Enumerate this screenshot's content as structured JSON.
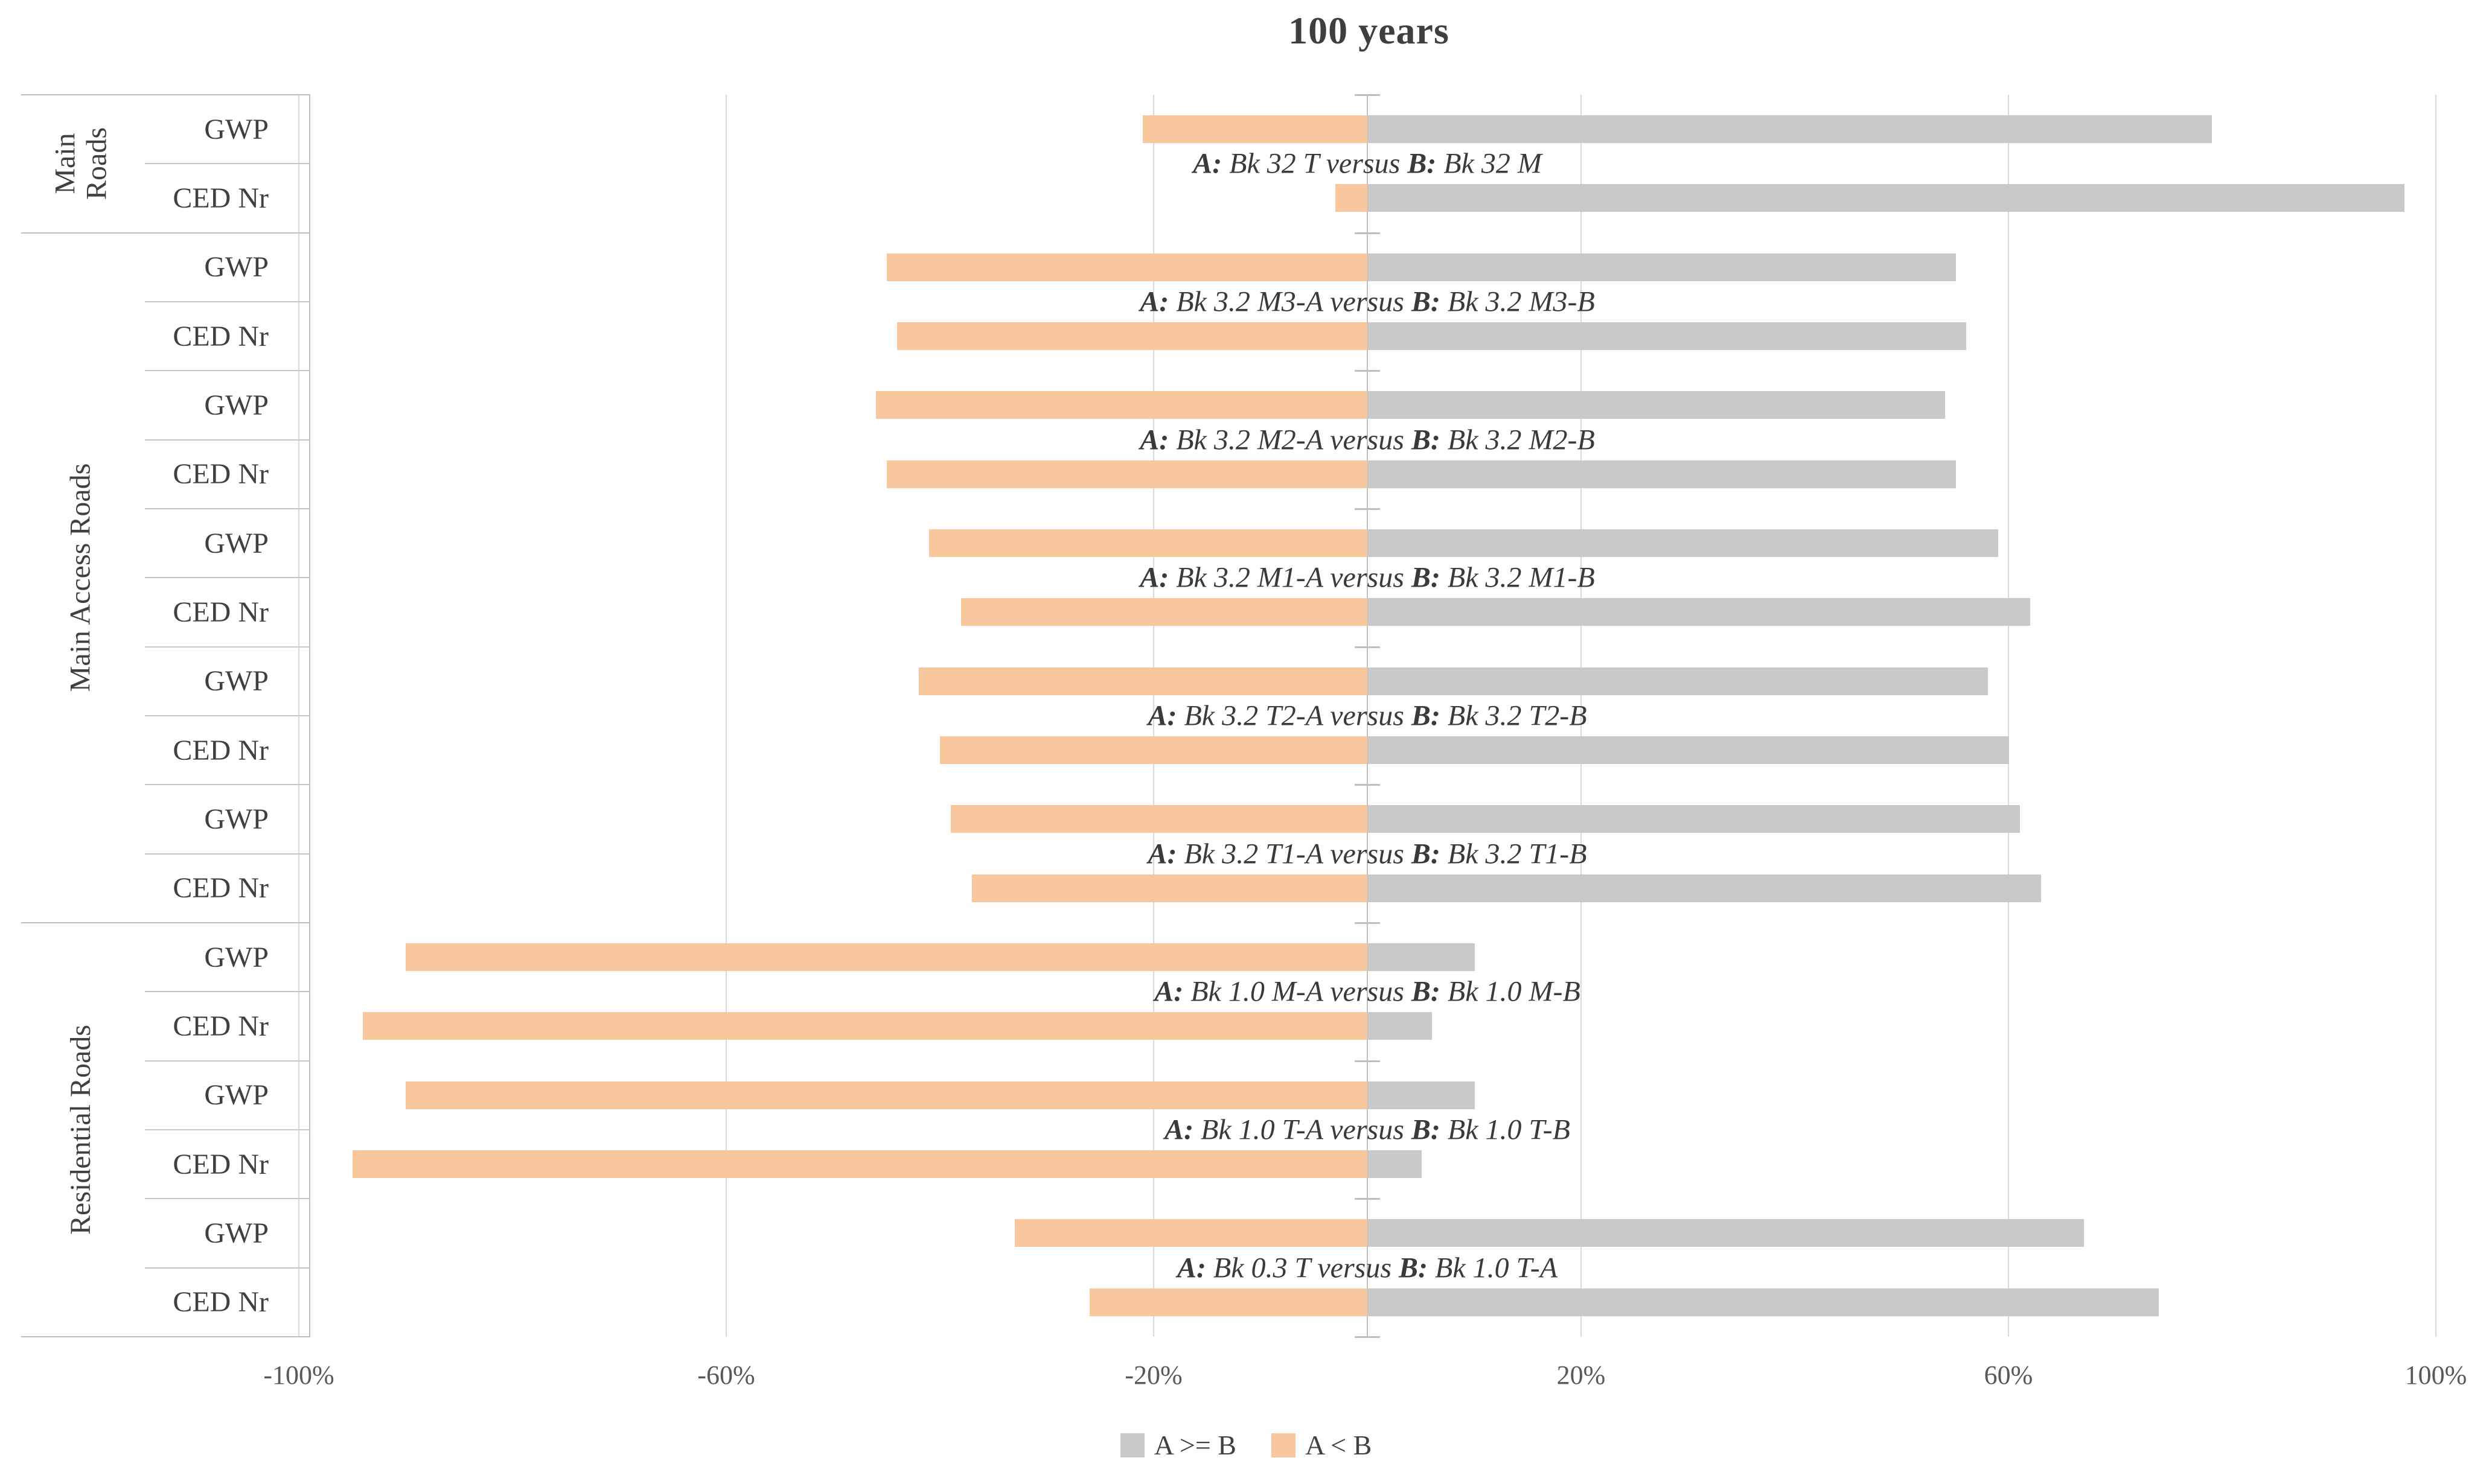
{
  "title": "100 years",
  "legend": {
    "items": [
      {
        "id": "a_ge_b",
        "label": "A >= B",
        "color": "#c9c9c9"
      },
      {
        "id": "a_lt_b",
        "label": "A < B",
        "color": "#f9c79d"
      }
    ]
  },
  "annotation_format": {
    "a_prefix": "A:",
    "versus": "versus",
    "b_prefix": "B:"
  },
  "chart_data": {
    "type": "bar",
    "orientation": "horizontal",
    "diverging": true,
    "title": "100 years",
    "xlabel": "",
    "ylabel": "",
    "x_ticks": [
      "-100%",
      "-60%",
      "-20%",
      "20%",
      "60%",
      "100%"
    ],
    "x_tick_values": [
      -100,
      -60,
      -20,
      20,
      60,
      100
    ],
    "xlim": [
      -100,
      100
    ],
    "gridlines": "vertical-at-ticks",
    "legend_position": "bottom-center",
    "series_names": [
      "A >= B",
      "A < B"
    ],
    "groups": [
      {
        "label": "Main Roads",
        "pairs": [
          {
            "a": "Bk 32 T",
            "b": "Bk 32 M",
            "rows": [
              {
                "metric": "GWP",
                "a_ge_b": 79,
                "a_lt_b": -21
              },
              {
                "metric": "CED Nr",
                "a_ge_b": 97,
                "a_lt_b": -3
              }
            ]
          }
        ]
      },
      {
        "label": "Main Access Roads",
        "pairs": [
          {
            "a": "Bk 3.2 M3-A",
            "b": "Bk 3.2 M3-B",
            "rows": [
              {
                "metric": "GWP",
                "a_ge_b": 55,
                "a_lt_b": -45
              },
              {
                "metric": "CED Nr",
                "a_ge_b": 56,
                "a_lt_b": -44
              }
            ]
          },
          {
            "a": "Bk 3.2 M2-A",
            "b": "Bk 3.2 M2-B",
            "rows": [
              {
                "metric": "GWP",
                "a_ge_b": 54,
                "a_lt_b": -46
              },
              {
                "metric": "CED Nr",
                "a_ge_b": 55,
                "a_lt_b": -45
              }
            ]
          },
          {
            "a": "Bk 3.2 M1-A",
            "b": "Bk 3.2 M1-B",
            "rows": [
              {
                "metric": "GWP",
                "a_ge_b": 59,
                "a_lt_b": -41
              },
              {
                "metric": "CED Nr",
                "a_ge_b": 62,
                "a_lt_b": -38
              }
            ]
          },
          {
            "a": "Bk 3.2 T2-A",
            "b": "Bk 3.2 T2-B",
            "rows": [
              {
                "metric": "GWP",
                "a_ge_b": 58,
                "a_lt_b": -42
              },
              {
                "metric": "CED Nr",
                "a_ge_b": 60,
                "a_lt_b": -40
              }
            ]
          },
          {
            "a": "Bk 3.2 T1-A",
            "b": "Bk 3.2 T1-B",
            "rows": [
              {
                "metric": "GWP",
                "a_ge_b": 61,
                "a_lt_b": -39
              },
              {
                "metric": "CED Nr",
                "a_ge_b": 63,
                "a_lt_b": -37
              }
            ]
          }
        ]
      },
      {
        "label": "Residential Roads",
        "pairs": [
          {
            "a": "Bk 1.0 M-A",
            "b": "Bk 1.0 M-B",
            "rows": [
              {
                "metric": "GWP",
                "a_ge_b": 10,
                "a_lt_b": -90
              },
              {
                "metric": "CED Nr",
                "a_ge_b": 6,
                "a_lt_b": -94
              }
            ]
          },
          {
            "a": "Bk 1.0 T-A",
            "b": "Bk 1.0 T-B",
            "rows": [
              {
                "metric": "GWP",
                "a_ge_b": 10,
                "a_lt_b": -90
              },
              {
                "metric": "CED Nr",
                "a_ge_b": 5,
                "a_lt_b": -95
              }
            ]
          },
          {
            "a": "Bk 0.3 T",
            "b": "Bk 1.0 T-A",
            "rows": [
              {
                "metric": "GWP",
                "a_ge_b": 67,
                "a_lt_b": -33
              },
              {
                "metric": "CED Nr",
                "a_ge_b": 74,
                "a_lt_b": -26
              }
            ]
          }
        ]
      }
    ],
    "colors": {
      "a_ge_b": "#c9c9c9",
      "a_lt_b": "#f9c79d",
      "gridline": "#d9d9d9",
      "axis": "#bfbfbf",
      "text": "#404040",
      "tick_text": "#595959"
    }
  }
}
